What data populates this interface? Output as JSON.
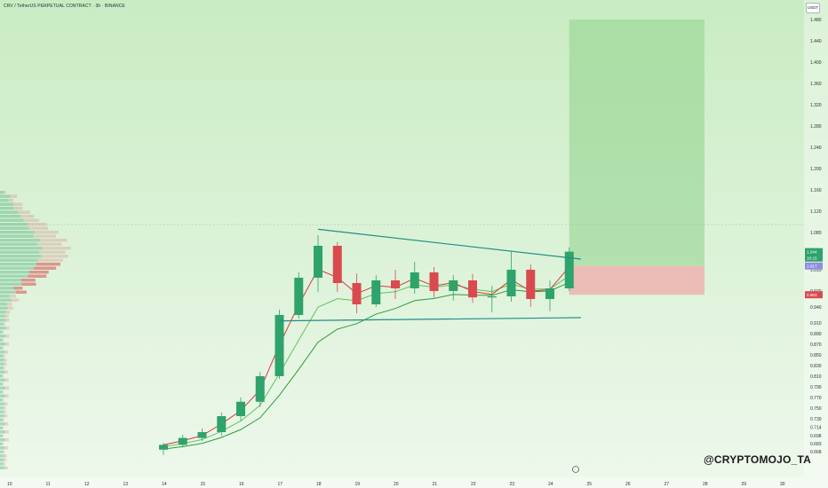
{
  "header": {
    "symbol": "CRV / TetherUS PERPETUAL CONTRACT · 3h · BINANCE"
  },
  "currency": "USDT",
  "watermark": "@CRYPTOMOJO_TA",
  "colors": {
    "background_top": "#c9ecc3",
    "background_bottom": "#eef8ec",
    "up": "#2ea36b",
    "down": "#d94a4f",
    "trendline": "#1e8f86",
    "ema_fast": "#5fc35f",
    "ema_slow": "#2c9d3a",
    "ema_short": "#d53a3a",
    "target_zone": "#8fd28a",
    "stop_zone": "#f0a9a9"
  },
  "chart_data": {
    "type": "candlestick",
    "y_axis": {
      "range": [
        0.62,
        1.5
      ],
      "ticks": [
        "0.668",
        "0.683",
        "0.698",
        "0.714",
        "0.730",
        "0.750",
        "0.770",
        "0.790",
        "0.810",
        "0.830",
        "0.850",
        "0.870",
        "0.890",
        "0.910",
        "0.940",
        "0.970",
        "1.010",
        "1.040",
        "1.080",
        "1.120",
        "1.160",
        "1.200",
        "1.240",
        "1.280",
        "1.320",
        "1.360",
        "1.400",
        "1.440",
        "1.480"
      ],
      "price_labels": [
        {
          "text": "1.044",
          "value": 1.044,
          "color": "#2ea36b"
        },
        {
          "text": "10:15",
          "value": 1.032,
          "color": "#2ea36b"
        },
        {
          "text": "1.017",
          "value": 1.017,
          "color": "#8f8fe0"
        },
        {
          "text": "0.963",
          "value": 0.963,
          "color": "#d94a4f"
        }
      ]
    },
    "x_axis": {
      "ticks": [
        "10",
        "11",
        "12",
        "13",
        "14",
        "15",
        "16",
        "17",
        "18",
        "19",
        "20",
        "21",
        "22",
        "23",
        "24",
        "25",
        "26",
        "27",
        "28",
        "29",
        "30"
      ]
    },
    "candles": [
      {
        "t": "14",
        "o": 0.672,
        "h": 0.685,
        "l": 0.662,
        "c": 0.681
      },
      {
        "t": "14.5",
        "o": 0.681,
        "h": 0.7,
        "l": 0.676,
        "c": 0.694
      },
      {
        "t": "15",
        "o": 0.694,
        "h": 0.712,
        "l": 0.688,
        "c": 0.705
      },
      {
        "t": "15.5",
        "o": 0.705,
        "h": 0.742,
        "l": 0.698,
        "c": 0.735
      },
      {
        "t": "16",
        "o": 0.735,
        "h": 0.77,
        "l": 0.726,
        "c": 0.762
      },
      {
        "t": "16.5",
        "o": 0.762,
        "h": 0.818,
        "l": 0.752,
        "c": 0.81
      },
      {
        "t": "17",
        "o": 0.81,
        "h": 0.935,
        "l": 0.805,
        "c": 0.925
      },
      {
        "t": "17.5",
        "o": 0.925,
        "h": 1.005,
        "l": 0.918,
        "c": 0.995
      },
      {
        "t": "18",
        "o": 0.995,
        "h": 1.075,
        "l": 0.968,
        "c": 1.055
      },
      {
        "t": "18.5",
        "o": 1.055,
        "h": 1.062,
        "l": 0.968,
        "c": 0.985
      },
      {
        "t": "19",
        "o": 0.985,
        "h": 1.003,
        "l": 0.928,
        "c": 0.945
      },
      {
        "t": "19.5",
        "o": 0.945,
        "h": 1.0,
        "l": 0.94,
        "c": 0.99
      },
      {
        "t": "20",
        "o": 0.99,
        "h": 1.01,
        "l": 0.955,
        "c": 0.975
      },
      {
        "t": "20.5",
        "o": 0.975,
        "h": 1.025,
        "l": 0.965,
        "c": 1.005
      },
      {
        "t": "21",
        "o": 1.005,
        "h": 1.015,
        "l": 0.958,
        "c": 0.97
      },
      {
        "t": "21.5",
        "o": 0.97,
        "h": 1.0,
        "l": 0.952,
        "c": 0.99
      },
      {
        "t": "22",
        "o": 0.99,
        "h": 1.002,
        "l": 0.948,
        "c": 0.958
      },
      {
        "t": "22.5",
        "o": 0.958,
        "h": 0.98,
        "l": 0.93,
        "c": 0.96
      },
      {
        "t": "23",
        "o": 0.96,
        "h": 1.045,
        "l": 0.95,
        "c": 1.01
      },
      {
        "t": "23.5",
        "o": 1.01,
        "h": 1.02,
        "l": 0.94,
        "c": 0.955
      },
      {
        "t": "24",
        "o": 0.955,
        "h": 0.99,
        "l": 0.932,
        "c": 0.975
      },
      {
        "t": "24.5",
        "o": 0.975,
        "h": 1.052,
        "l": 0.97,
        "c": 1.044
      }
    ],
    "trendlines": [
      {
        "name": "upper",
        "from": {
          "t": "18",
          "v": 1.086
        },
        "to": {
          "t": "24.8",
          "v": 1.03
        }
      },
      {
        "name": "lower",
        "from": {
          "t": "17",
          "v": 0.914
        },
        "to": {
          "t": "24.8",
          "v": 0.92
        }
      }
    ],
    "zones": [
      {
        "kind": "target",
        "from_t": "24.5",
        "to_t": "28",
        "top": 1.48,
        "bottom": 1.017
      },
      {
        "kind": "stop",
        "from_t": "24.5",
        "to_t": "28",
        "top": 1.017,
        "bottom": 0.963
      }
    ]
  }
}
